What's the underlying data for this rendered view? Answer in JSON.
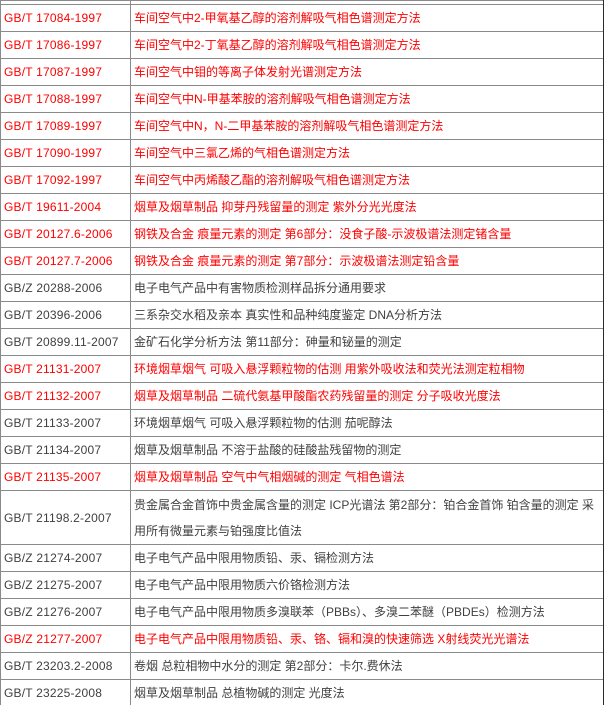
{
  "colors": {
    "highlight_text": "#fe0000",
    "normal_text": "#404040",
    "grid_border": "#8a8a8a",
    "right_edge": "#2b2b2b",
    "background": "#ffffff"
  },
  "table": {
    "rows": [
      {
        "code": "GB/T 17084-1997",
        "title": "车间空气中2-甲氧基乙醇的溶剂解吸气相色谱测定方法",
        "highlight": true,
        "tall": false
      },
      {
        "code": "GB/T 17086-1997",
        "title": "车间空气中2-丁氧基乙醇的溶剂解吸气相色谱测定方法",
        "highlight": true,
        "tall": false
      },
      {
        "code": "GB/T 17087-1997",
        "title": "车间空气中钼的等离子体发射光谱测定方法",
        "highlight": true,
        "tall": false
      },
      {
        "code": "GB/T 17088-1997",
        "title": "车间空气中N-甲基苯胺的溶剂解吸气相色谱测定方法",
        "highlight": true,
        "tall": false
      },
      {
        "code": "GB/T 17089-1997",
        "title": "车间空气中N，N-二甲基苯胺的溶剂解吸气相色谱测定方法",
        "highlight": true,
        "tall": false
      },
      {
        "code": "GB/T 17090-1997",
        "title": "车间空气中三氯乙烯的气相色谱测定方法",
        "highlight": true,
        "tall": false
      },
      {
        "code": "GB/T 17092-1997",
        "title": "车间空气中丙烯酸乙酯的溶剂解吸气相色谱测定方法",
        "highlight": true,
        "tall": false
      },
      {
        "code": "GB/T 19611-2004",
        "title": "烟草及烟草制品 抑芽丹残留量的测定 紫外分光光度法",
        "highlight": true,
        "tall": false
      },
      {
        "code": "GB/T 20127.6-2006",
        "title": "钢铁及合金 痕量元素的测定 第6部分：没食子酸-示波极谱法测定锗含量",
        "highlight": true,
        "tall": false
      },
      {
        "code": "GB/T 20127.7-2006",
        "title": "钢铁及合金 痕量元素的测定 第7部分：示波极谱法测定铅含量",
        "highlight": true,
        "tall": false
      },
      {
        "code": "GB/Z 20288-2006",
        "title": "电子电气产品中有害物质检测样品拆分通用要求",
        "highlight": false,
        "tall": false
      },
      {
        "code": "GB/T 20396-2006",
        "title": "三系杂交水稻及亲本 真实性和品种纯度鉴定 DNA分析方法",
        "highlight": false,
        "tall": false
      },
      {
        "code": "GB/T 20899.11-2007",
        "title": "金矿石化学分析方法 第11部分：砷量和铋量的测定",
        "highlight": false,
        "tall": false
      },
      {
        "code": "GB/T 21131-2007",
        "title": "环境烟草烟气 可吸入悬浮颗粒物的估测 用紫外吸收法和荧光法测定粒相物",
        "highlight": true,
        "tall": false
      },
      {
        "code": "GB/T 21132-2007",
        "title": "烟草及烟草制品 二硫代氨基甲酸酯农药残留量的测定 分子吸收光度法",
        "highlight": true,
        "tall": false
      },
      {
        "code": "GB/T 21133-2007",
        "title": "环境烟草烟气 可吸入悬浮颗粒物的估测 茄呢醇法",
        "highlight": false,
        "tall": false
      },
      {
        "code": "GB/T 21134-2007",
        "title": "烟草及烟草制品 不溶于盐酸的硅酸盐残留物的测定",
        "highlight": false,
        "tall": false
      },
      {
        "code": "GB/T 21135-2007",
        "title": "烟草及烟草制品 空气中气相烟碱的测定 气相色谱法",
        "highlight": true,
        "tall": false
      },
      {
        "code": "GB/T 21198.2-2007",
        "title": "贵金属合金首饰中贵金属含量的测定 ICP光谱法 第2部分：铂合金首饰 铂含量的测定 采用所有微量元素与铂强度比值法",
        "highlight": false,
        "tall": true
      },
      {
        "code": "GB/Z 21274-2007",
        "title": "电子电气产品中限用物质铅、汞、镉检测方法",
        "highlight": false,
        "tall": false
      },
      {
        "code": "GB/Z 21275-2007",
        "title": "电子电气产品中限用物质六价铬检测方法",
        "highlight": false,
        "tall": false
      },
      {
        "code": "GB/Z 21276-2007",
        "title": "电子电气产品中限用物质多溴联苯（PBBs）、多溴二苯醚（PBDEs）检测方法",
        "highlight": false,
        "tall": false
      },
      {
        "code": "GB/Z 21277-2007",
        "title": "电子电气产品中限用物质铅、汞、铬、镉和溴的快速筛选 X射线荧光光谱法",
        "highlight": true,
        "tall": false
      },
      {
        "code": "GB/T 23203.2-2008",
        "title": "卷烟 总粒相物中水分的测定 第2部分：卡尔.费休法",
        "highlight": false,
        "tall": false
      },
      {
        "code": "GB/T 23225-2008",
        "title": "烟草及烟草制品 总植物碱的测定 光度法",
        "highlight": false,
        "tall": false
      }
    ]
  }
}
